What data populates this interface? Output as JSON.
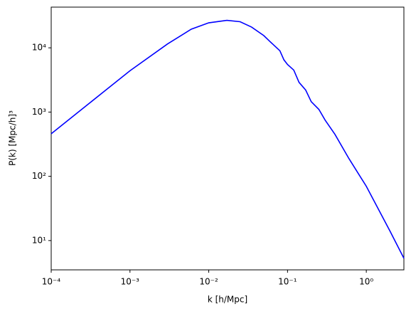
{
  "chart_data": {
    "type": "line",
    "xlabel": "k  [h/Mpc]",
    "ylabel": "P(k)  [Mpc/h]³",
    "x": [
      0.0001,
      0.0003,
      0.001,
      0.003,
      0.006,
      0.01,
      0.017,
      0.025,
      0.035,
      0.05,
      0.06,
      0.08,
      0.09,
      0.1,
      0.12,
      0.14,
      0.17,
      0.2,
      0.25,
      0.3,
      0.4,
      0.6,
      1,
      2,
      3
    ],
    "series": [
      {
        "color": "#0000ff",
        "values": [
          460,
          1350,
          4400,
          11500,
          19500,
          24500,
          26800,
          25500,
          21000,
          15500,
          12500,
          9000,
          6500,
          5500,
          4500,
          2900,
          2200,
          1450,
          1100,
          750,
          450,
          190,
          70,
          14,
          5.3
        ]
      }
    ],
    "xscale": "log",
    "yscale": "log",
    "xlim": [
      0.0001,
      3
    ],
    "ylim": [
      3.5,
      43000
    ],
    "xticks": [
      {
        "value": 0.0001,
        "label": "10⁻⁴"
      },
      {
        "value": 0.001,
        "label": "10⁻³"
      },
      {
        "value": 0.01,
        "label": "10⁻²"
      },
      {
        "value": 0.1,
        "label": "10⁻¹"
      },
      {
        "value": 1,
        "label": "10⁰"
      }
    ],
    "yticks": [
      {
        "value": 10,
        "label": "10¹"
      },
      {
        "value": 100,
        "label": "10²"
      },
      {
        "value": 1000,
        "label": "10³"
      },
      {
        "value": 10000,
        "label": "10⁴"
      }
    ]
  }
}
